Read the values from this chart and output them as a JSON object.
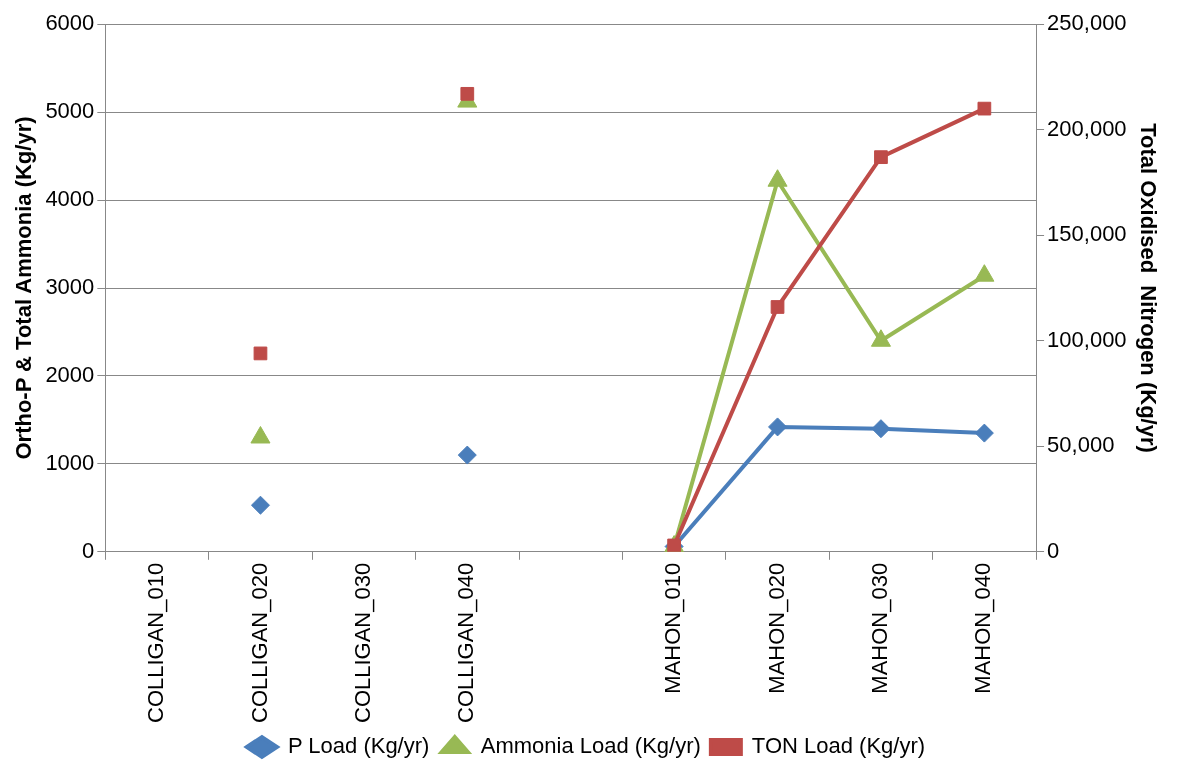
{
  "chart_data": {
    "type": "line",
    "ylabel": "Ortho-P & Total Ammonia (Kg/yr)",
    "y2label": "Total Oxidised  Nitrogen (Kg/yr)",
    "categories": [
      "COLLIGAN_010",
      "COLLIGAN_020",
      "COLLIGAN_030",
      "COLLIGAN_040",
      null,
      "MAHON_010",
      "MAHON_020",
      "MAHON_030",
      "MAHON_040"
    ],
    "series": [
      {
        "name": "P Load (Kg/yr)",
        "color": "#4a7ebb",
        "marker": "diamond",
        "values": [
          null,
          530,
          null,
          1100,
          null,
          60,
          1420,
          1400,
          1350
        ]
      },
      {
        "name": "Ammonia Load (Kg/yr)",
        "color": "#98b954",
        "marker": "triangle",
        "values": [
          null,
          1300,
          null,
          5120,
          null,
          60,
          4220,
          2400,
          3140
        ]
      },
      {
        "name": "TON Load (Kg/yr)",
        "color": "#be4b48",
        "marker": "square",
        "axis": "y2",
        "values": [
          null,
          94000,
          null,
          217000,
          null,
          3000,
          116000,
          187000,
          210000
        ]
      }
    ],
    "ylim": [
      0,
      6000
    ],
    "yticks": [
      0,
      1000,
      2000,
      3000,
      4000,
      5000,
      6000
    ],
    "y2lim": [
      0,
      250000
    ],
    "y2ticks": [
      {
        "value": 0,
        "label": "0"
      },
      {
        "value": 50000,
        "label": "50,000"
      },
      {
        "value": 100000,
        "label": "100,000"
      },
      {
        "value": 150000,
        "label": "150,000"
      },
      {
        "value": 200000,
        "label": "200,000"
      },
      {
        "value": 250000,
        "label": "250,000"
      }
    ],
    "grid": "y",
    "legend": "bottom"
  }
}
